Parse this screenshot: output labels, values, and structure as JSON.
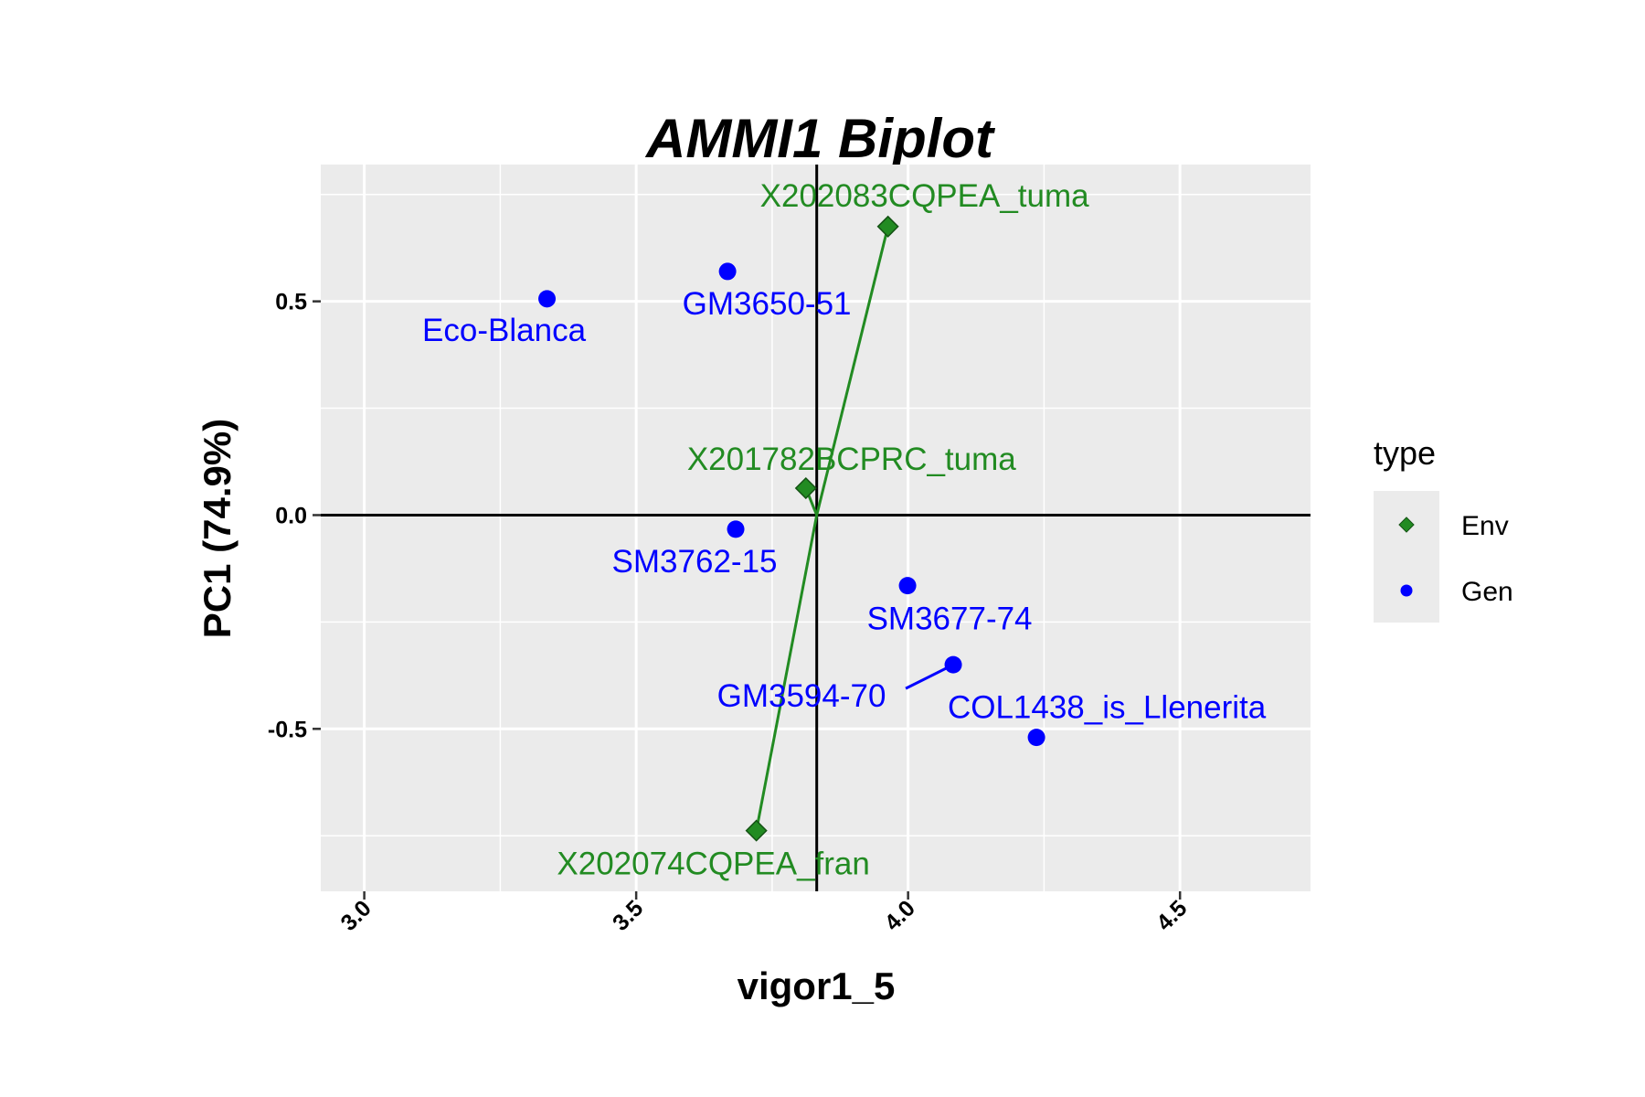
{
  "chart_data": {
    "type": "scatter",
    "title": "AMMI1 Biplot",
    "xlabel": "vigor1_5",
    "ylabel": "PC1 (74.9%)",
    "xlim": [
      2.92,
      4.74
    ],
    "ylim": [
      -0.88,
      0.82
    ],
    "x_ticks": [
      3.0,
      3.5,
      4.0,
      4.5
    ],
    "x_tick_labels": [
      "3.0",
      "3.5",
      "4.0",
      "4.5"
    ],
    "y_ticks": [
      -0.5,
      0.0,
      0.5
    ],
    "y_tick_labels": [
      "-0.5",
      "0.0",
      "0.5"
    ],
    "grid": true,
    "reference_lines": {
      "x": 3.832,
      "y": 0.0
    },
    "legend": {
      "title": "type",
      "position": "right",
      "entries": [
        {
          "label": "Env",
          "color": "#228B22",
          "shape": "diamond"
        },
        {
          "label": "Gen",
          "color": "#0000FF",
          "shape": "circle"
        }
      ]
    },
    "series": [
      {
        "name": "Env",
        "color": "#228B22",
        "shape": "diamond",
        "points": [
          {
            "label": "X202083CQPEA_tuma",
            "x": 3.963,
            "y": 0.675
          },
          {
            "label": "X201782BCPRC_tuma",
            "x": 3.812,
            "y": 0.063
          },
          {
            "label": "X202074CQPEA_fran",
            "x": 3.721,
            "y": -0.738
          }
        ]
      },
      {
        "name": "Gen",
        "color": "#0000FF",
        "shape": "circle",
        "points": [
          {
            "label": "Eco-Blanca",
            "x": 3.336,
            "y": 0.506
          },
          {
            "label": "GM3650-51",
            "x": 3.668,
            "y": 0.57
          },
          {
            "label": "SM3762-15",
            "x": 3.683,
            "y": -0.033
          },
          {
            "label": "SM3677-74",
            "x": 3.999,
            "y": -0.165
          },
          {
            "label": "GM3594-70",
            "x": 4.083,
            "y": -0.35
          },
          {
            "label": "COL1438_is_Llenerita",
            "x": 4.236,
            "y": -0.52
          }
        ]
      }
    ]
  }
}
